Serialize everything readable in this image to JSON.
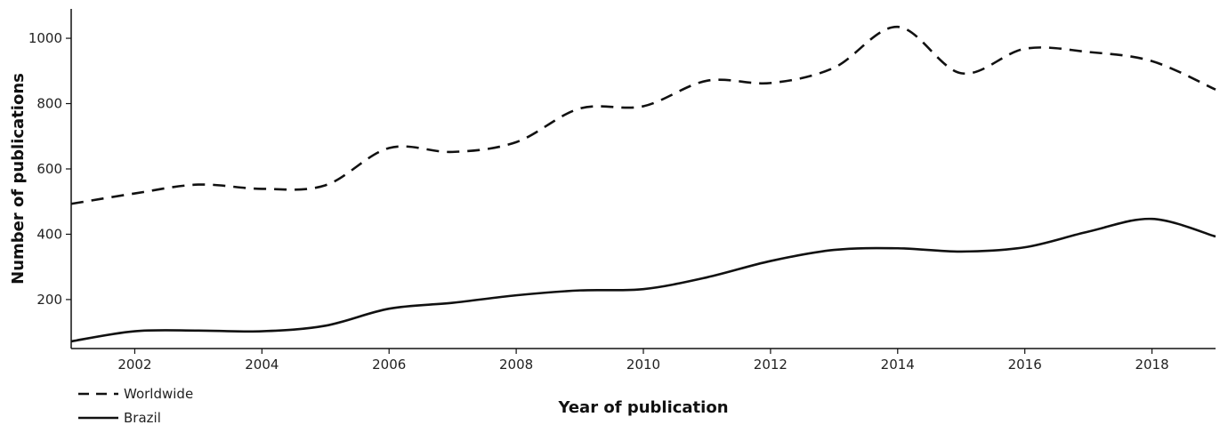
{
  "chart_data": {
    "type": "line",
    "title": "",
    "xlabel": "Year of publication",
    "ylabel": "Number of publications",
    "xlim": [
      2001,
      2019
    ],
    "ylim": [
      50,
      1090
    ],
    "x_ticks": [
      2002,
      2004,
      2006,
      2008,
      2010,
      2012,
      2014,
      2016,
      2018
    ],
    "y_ticks": [
      200,
      400,
      600,
      800,
      1000
    ],
    "grid": false,
    "legend_position": "bottom-left",
    "x": [
      2001,
      2002,
      2003,
      2004,
      2005,
      2006,
      2007,
      2008,
      2009,
      2010,
      2011,
      2012,
      2013,
      2014,
      2015,
      2016,
      2017,
      2018,
      2019
    ],
    "series": [
      {
        "name": "Worldwide",
        "line_style": "dashed",
        "color": "#111111",
        "values": [
          493,
          525,
          552,
          539,
          550,
          664,
          652,
          682,
          785,
          792,
          870,
          863,
          910,
          1035,
          893,
          968,
          958,
          930,
          843
        ]
      },
      {
        "name": "Brazil",
        "line_style": "solid",
        "color": "#111111",
        "values": [
          72,
          103,
          105,
          103,
          120,
          172,
          190,
          213,
          228,
          232,
          268,
          318,
          352,
          357,
          347,
          360,
          408,
          447,
          393
        ]
      }
    ]
  }
}
